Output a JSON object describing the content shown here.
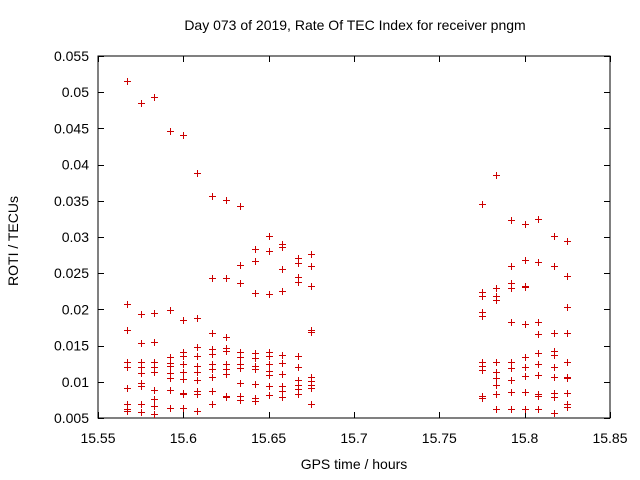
{
  "chart_data": {
    "type": "scatter",
    "title": "Day 073 of 2019, Rate Of TEC Index for receiver pngm",
    "xlabel": "GPS time / hours",
    "ylabel": "ROTI / TECUs",
    "xlim": [
      15.55,
      15.85
    ],
    "ylim": [
      0.005,
      0.055
    ],
    "x_ticks": [
      "15.55",
      "15.6",
      "15.65",
      "15.7",
      "15.75",
      "15.8",
      "15.85"
    ],
    "x_tick_values": [
      15.55,
      15.6,
      15.65,
      15.7,
      15.75,
      15.8,
      15.85
    ],
    "y_ticks": [
      "0.005",
      "0.01",
      "0.015",
      "0.02",
      "0.025",
      "0.03",
      "0.035",
      "0.04",
      "0.045",
      "0.05",
      "0.055"
    ],
    "y_tick_values": [
      0.005,
      0.01,
      0.015,
      0.02,
      0.025,
      0.03,
      0.035,
      0.04,
      0.045,
      0.05,
      0.055
    ],
    "marker": "+",
    "color": "#cc0000",
    "grid": false,
    "series": [
      {
        "name": "ROTI",
        "points": [
          [
            15.567,
            0.0515
          ],
          [
            15.567,
            0.0208
          ],
          [
            15.567,
            0.0171
          ],
          [
            15.567,
            0.0127
          ],
          [
            15.567,
            0.012
          ],
          [
            15.567,
            0.0092
          ],
          [
            15.567,
            0.0069
          ],
          [
            15.567,
            0.0063
          ],
          [
            15.567,
            0.006
          ],
          [
            15.575,
            0.0485
          ],
          [
            15.575,
            0.0194
          ],
          [
            15.575,
            0.0154
          ],
          [
            15.575,
            0.0127
          ],
          [
            15.575,
            0.0121
          ],
          [
            15.575,
            0.0112
          ],
          [
            15.575,
            0.0098
          ],
          [
            15.575,
            0.0094
          ],
          [
            15.575,
            0.007
          ],
          [
            15.575,
            0.0058
          ],
          [
            15.583,
            0.0494
          ],
          [
            15.583,
            0.0195
          ],
          [
            15.583,
            0.0155
          ],
          [
            15.583,
            0.0128
          ],
          [
            15.583,
            0.012
          ],
          [
            15.583,
            0.0113
          ],
          [
            15.583,
            0.0088
          ],
          [
            15.583,
            0.0076
          ],
          [
            15.583,
            0.0067
          ],
          [
            15.583,
            0.0055
          ],
          [
            15.592,
            0.0446
          ],
          [
            15.592,
            0.0199
          ],
          [
            15.592,
            0.0134
          ],
          [
            15.592,
            0.0126
          ],
          [
            15.592,
            0.0122
          ],
          [
            15.592,
            0.0112
          ],
          [
            15.592,
            0.0105
          ],
          [
            15.592,
            0.0088
          ],
          [
            15.592,
            0.0064
          ],
          [
            15.6,
            0.0441
          ],
          [
            15.6,
            0.0186
          ],
          [
            15.6,
            0.0141
          ],
          [
            15.6,
            0.0136
          ],
          [
            15.6,
            0.0124
          ],
          [
            15.6,
            0.0114
          ],
          [
            15.6,
            0.0104
          ],
          [
            15.6,
            0.0085
          ],
          [
            15.6,
            0.0083
          ],
          [
            15.6,
            0.0064
          ],
          [
            15.608,
            0.0389
          ],
          [
            15.608,
            0.0188
          ],
          [
            15.608,
            0.0148
          ],
          [
            15.608,
            0.0136
          ],
          [
            15.608,
            0.0122
          ],
          [
            15.608,
            0.0114
          ],
          [
            15.608,
            0.0103
          ],
          [
            15.608,
            0.0087
          ],
          [
            15.608,
            0.0083
          ],
          [
            15.608,
            0.006
          ],
          [
            15.617,
            0.0356
          ],
          [
            15.617,
            0.0243
          ],
          [
            15.617,
            0.0167
          ],
          [
            15.617,
            0.0145
          ],
          [
            15.617,
            0.0138
          ],
          [
            15.617,
            0.0124
          ],
          [
            15.617,
            0.0117
          ],
          [
            15.617,
            0.0106
          ],
          [
            15.617,
            0.0087
          ],
          [
            15.617,
            0.007
          ],
          [
            15.625,
            0.0351
          ],
          [
            15.625,
            0.0244
          ],
          [
            15.625,
            0.0162
          ],
          [
            15.625,
            0.0147
          ],
          [
            15.625,
            0.0142
          ],
          [
            15.625,
            0.0125
          ],
          [
            15.625,
            0.0118
          ],
          [
            15.625,
            0.0111
          ],
          [
            15.625,
            0.0081
          ],
          [
            15.625,
            0.0079
          ],
          [
            15.633,
            0.0343
          ],
          [
            15.633,
            0.0261
          ],
          [
            15.633,
            0.0236
          ],
          [
            15.633,
            0.0141
          ],
          [
            15.633,
            0.0134
          ],
          [
            15.633,
            0.0125
          ],
          [
            15.633,
            0.0119
          ],
          [
            15.633,
            0.0099
          ],
          [
            15.633,
            0.0081
          ],
          [
            15.633,
            0.0075
          ],
          [
            15.642,
            0.0284
          ],
          [
            15.642,
            0.0267
          ],
          [
            15.642,
            0.0223
          ],
          [
            15.642,
            0.014
          ],
          [
            15.642,
            0.0133
          ],
          [
            15.642,
            0.0122
          ],
          [
            15.642,
            0.0117
          ],
          [
            15.642,
            0.0097
          ],
          [
            15.642,
            0.0078
          ],
          [
            15.642,
            0.0073
          ],
          [
            15.65,
            0.0302
          ],
          [
            15.65,
            0.0281
          ],
          [
            15.65,
            0.0221
          ],
          [
            15.65,
            0.0141
          ],
          [
            15.65,
            0.0135
          ],
          [
            15.65,
            0.0124
          ],
          [
            15.65,
            0.0115
          ],
          [
            15.65,
            0.0109
          ],
          [
            15.65,
            0.0094
          ],
          [
            15.65,
            0.0082
          ],
          [
            15.658,
            0.029
          ],
          [
            15.658,
            0.0286
          ],
          [
            15.658,
            0.0256
          ],
          [
            15.658,
            0.0226
          ],
          [
            15.658,
            0.0137
          ],
          [
            15.658,
            0.0126
          ],
          [
            15.658,
            0.0111
          ],
          [
            15.658,
            0.0094
          ],
          [
            15.658,
            0.0087
          ],
          [
            15.658,
            0.0079
          ],
          [
            15.667,
            0.0271
          ],
          [
            15.667,
            0.0264
          ],
          [
            15.667,
            0.0245
          ],
          [
            15.667,
            0.0238
          ],
          [
            15.667,
            0.0136
          ],
          [
            15.667,
            0.012
          ],
          [
            15.667,
            0.0103
          ],
          [
            15.667,
            0.0095
          ],
          [
            15.667,
            0.009
          ],
          [
            15.667,
            0.0083
          ],
          [
            15.675,
            0.0276
          ],
          [
            15.675,
            0.026
          ],
          [
            15.675,
            0.0232
          ],
          [
            15.675,
            0.0172
          ],
          [
            15.675,
            0.0169
          ],
          [
            15.675,
            0.0106
          ],
          [
            15.675,
            0.0101
          ],
          [
            15.675,
            0.0096
          ],
          [
            15.675,
            0.0091
          ],
          [
            15.675,
            0.0069
          ],
          [
            15.775,
            0.0346
          ],
          [
            15.775,
            0.0224
          ],
          [
            15.775,
            0.0218
          ],
          [
            15.775,
            0.0196
          ],
          [
            15.775,
            0.0191
          ],
          [
            15.775,
            0.0128
          ],
          [
            15.775,
            0.0122
          ],
          [
            15.775,
            0.0116
          ],
          [
            15.775,
            0.0081
          ],
          [
            15.775,
            0.0077
          ],
          [
            15.783,
            0.0385
          ],
          [
            15.783,
            0.0229
          ],
          [
            15.783,
            0.0218
          ],
          [
            15.783,
            0.0213
          ],
          [
            15.783,
            0.0127
          ],
          [
            15.783,
            0.0113
          ],
          [
            15.783,
            0.0105
          ],
          [
            15.783,
            0.0095
          ],
          [
            15.783,
            0.0083
          ],
          [
            15.783,
            0.0063
          ],
          [
            15.792,
            0.0323
          ],
          [
            15.792,
            0.026
          ],
          [
            15.792,
            0.0236
          ],
          [
            15.792,
            0.0229
          ],
          [
            15.792,
            0.0183
          ],
          [
            15.792,
            0.0128
          ],
          [
            15.792,
            0.0119
          ],
          [
            15.792,
            0.0102
          ],
          [
            15.792,
            0.0086
          ],
          [
            15.792,
            0.0063
          ],
          [
            15.8,
            0.0318
          ],
          [
            15.8,
            0.0268
          ],
          [
            15.8,
            0.0232
          ],
          [
            15.8,
            0.0231
          ],
          [
            15.8,
            0.018
          ],
          [
            15.8,
            0.0134
          ],
          [
            15.8,
            0.012
          ],
          [
            15.8,
            0.0108
          ],
          [
            15.8,
            0.0086
          ],
          [
            15.8,
            0.0062
          ],
          [
            15.808,
            0.0325
          ],
          [
            15.808,
            0.0266
          ],
          [
            15.808,
            0.0183
          ],
          [
            15.808,
            0.0166
          ],
          [
            15.808,
            0.014
          ],
          [
            15.808,
            0.0124
          ],
          [
            15.808,
            0.0109
          ],
          [
            15.808,
            0.0083
          ],
          [
            15.808,
            0.008
          ],
          [
            15.808,
            0.0063
          ],
          [
            15.817,
            0.0301
          ],
          [
            15.817,
            0.026
          ],
          [
            15.817,
            0.0167
          ],
          [
            15.817,
            0.0143
          ],
          [
            15.817,
            0.0137
          ],
          [
            15.817,
            0.0121
          ],
          [
            15.817,
            0.0106
          ],
          [
            15.817,
            0.0085
          ],
          [
            15.817,
            0.0079
          ],
          [
            15.817,
            0.0057
          ],
          [
            15.825,
            0.0294
          ],
          [
            15.825,
            0.0246
          ],
          [
            15.825,
            0.0203
          ],
          [
            15.825,
            0.0167
          ],
          [
            15.825,
            0.0127
          ],
          [
            15.825,
            0.0106
          ],
          [
            15.825,
            0.0105
          ],
          [
            15.825,
            0.0085
          ],
          [
            15.825,
            0.0069
          ],
          [
            15.825,
            0.0065
          ]
        ]
      }
    ]
  }
}
